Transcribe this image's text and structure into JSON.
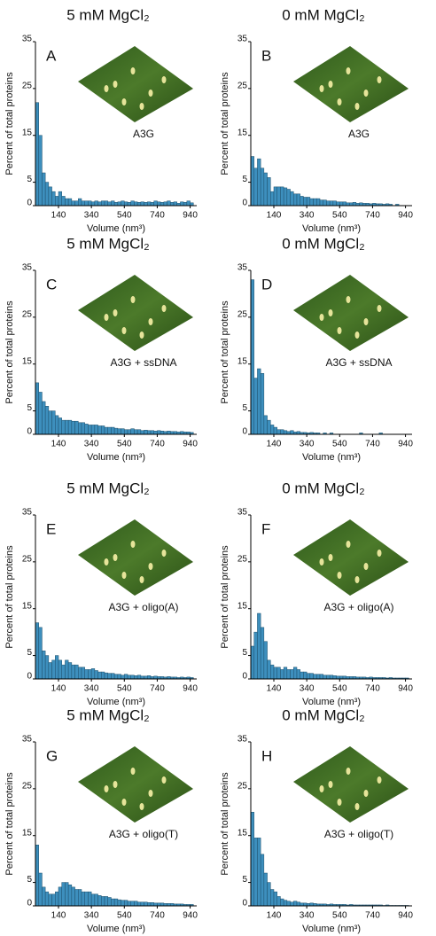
{
  "chart_data": [
    {
      "type": "histogram",
      "title": "5 mM MgCl₂",
      "panel_label": "A",
      "image_label": "A3G",
      "xlabel": "Volume (nm³)",
      "ylabel": "Percent of total proteins",
      "color": "#3d8fbd",
      "bins": [
        0,
        20,
        40,
        60,
        80,
        100,
        120,
        140,
        160,
        180,
        200,
        220,
        240,
        260,
        280,
        300,
        320,
        340,
        360,
        380,
        400,
        420,
        440,
        460,
        480,
        500,
        520,
        540,
        560,
        580,
        600,
        620,
        640,
        660,
        680,
        700,
        720,
        740,
        760,
        780,
        800,
        820,
        840,
        860,
        880,
        900,
        920,
        940,
        960
      ],
      "counts": [
        22,
        15,
        7,
        5,
        4,
        3,
        2,
        3,
        2,
        1.5,
        1.5,
        1,
        1,
        1.5,
        1,
        1,
        1,
        0.8,
        1,
        0.8,
        1,
        1,
        0.8,
        1,
        0.7,
        0.8,
        1,
        0.8,
        0.7,
        1,
        0.8,
        0.7,
        0.8,
        0.7,
        0.8,
        0.7,
        1,
        0.8,
        0.7,
        0.8,
        1,
        0.7,
        0.8,
        0.5,
        0.8,
        0.7,
        1,
        0.6
      ],
      "xlim": [
        0,
        980
      ],
      "ylim": [
        0,
        35
      ],
      "xticks": [
        140,
        340,
        540,
        740,
        940
      ],
      "yticks": [
        0,
        5,
        15,
        25,
        35
      ]
    },
    {
      "type": "histogram",
      "title": "0 mM MgCl₂",
      "panel_label": "B",
      "image_label": "A3G",
      "xlabel": "Volume (nm³)",
      "ylabel": "Percent of total proteins",
      "color": "#3d8fbd",
      "bins": [
        0,
        20,
        40,
        60,
        80,
        100,
        120,
        140,
        160,
        180,
        200,
        220,
        240,
        260,
        280,
        300,
        320,
        340,
        360,
        380,
        400,
        420,
        440,
        460,
        480,
        500,
        520,
        540,
        560,
        580,
        600,
        620,
        640,
        660,
        680,
        700,
        720,
        740,
        760,
        780,
        800,
        820,
        840,
        860,
        880,
        900,
        920,
        940,
        960
      ],
      "counts": [
        10.5,
        8,
        10,
        8,
        7,
        6,
        3,
        4,
        4,
        4,
        3.8,
        3.5,
        3,
        2.5,
        2.5,
        2,
        1.8,
        1.8,
        1.5,
        1.5,
        1.5,
        1.2,
        1.2,
        1,
        1,
        1,
        0.8,
        0.8,
        0.8,
        0.6,
        0.6,
        0.7,
        0.5,
        0.6,
        0.5,
        0.5,
        0.4,
        0.5,
        0.4,
        0.4,
        0.3,
        0.4,
        0.3,
        0,
        0.3,
        0,
        0,
        0
      ],
      "xlim": [
        0,
        980
      ],
      "ylim": [
        0,
        35
      ],
      "xticks": [
        140,
        340,
        540,
        740,
        940
      ],
      "yticks": [
        0,
        5,
        15,
        25,
        35
      ]
    },
    {
      "type": "histogram",
      "title": "5 mM MgCl₂",
      "panel_label": "C",
      "image_label": "A3G + ssDNA",
      "xlabel": "Volume (nm³)",
      "ylabel": "Percent of total proteins",
      "color": "#3d8fbd",
      "bins": [
        0,
        20,
        40,
        60,
        80,
        100,
        120,
        140,
        160,
        180,
        200,
        220,
        240,
        260,
        280,
        300,
        320,
        340,
        360,
        380,
        400,
        420,
        440,
        460,
        480,
        500,
        520,
        540,
        560,
        580,
        600,
        620,
        640,
        660,
        680,
        700,
        720,
        740,
        760,
        780,
        800,
        820,
        840,
        860,
        880,
        900,
        920,
        940,
        960
      ],
      "counts": [
        11,
        9,
        7,
        6,
        5,
        5,
        4,
        3.5,
        3,
        3,
        3,
        2.8,
        2.8,
        2.5,
        2.5,
        2.2,
        2,
        2,
        2,
        1.8,
        1.8,
        1.5,
        1.5,
        1.5,
        1.3,
        1.2,
        1.2,
        1,
        1,
        1.2,
        1,
        1,
        0.8,
        0.9,
        0.8,
        0.8,
        0.7,
        0.8,
        0.7,
        0.6,
        0.7,
        0.6,
        0.6,
        0.5,
        0.6,
        0.5,
        0.5,
        0.4
      ],
      "xlim": [
        0,
        980
      ],
      "ylim": [
        0,
        35
      ],
      "xticks": [
        140,
        340,
        540,
        740,
        940
      ],
      "yticks": [
        0,
        5,
        15,
        25,
        35
      ]
    },
    {
      "type": "histogram",
      "title": "0 mM MgCl₂",
      "panel_label": "D",
      "image_label": "A3G + ssDNA",
      "xlabel": "Volume (nm³)",
      "ylabel": "Percent of total proteins",
      "color": "#3d8fbd",
      "bins": [
        0,
        20,
        40,
        60,
        80,
        100,
        120,
        140,
        160,
        180,
        200,
        220,
        240,
        260,
        280,
        300,
        320,
        340,
        360,
        380,
        400,
        420,
        440,
        460,
        480,
        500,
        520,
        540,
        560,
        580,
        600,
        620,
        640,
        660,
        680,
        700,
        720,
        740,
        760,
        780,
        800,
        820,
        840,
        860,
        880,
        900,
        920,
        940,
        960
      ],
      "counts": [
        33,
        12,
        14,
        13,
        4,
        3,
        2,
        1.5,
        1,
        1,
        0.8,
        0.6,
        0.8,
        0.5,
        0.6,
        0.4,
        0.4,
        0.3,
        0.4,
        0.3,
        0.3,
        0,
        0.3,
        0,
        0.3,
        0,
        0,
        0,
        0,
        0,
        0,
        0,
        0,
        0.3,
        0,
        0,
        0,
        0,
        0,
        0.3,
        0,
        0,
        0,
        0,
        0,
        0,
        0,
        0
      ],
      "xlim": [
        0,
        980
      ],
      "ylim": [
        0,
        35
      ],
      "xticks": [
        140,
        340,
        540,
        740,
        940
      ],
      "yticks": [
        0,
        5,
        15,
        25,
        35
      ]
    },
    {
      "type": "histogram",
      "title": "5 mM MgCl₂",
      "panel_label": "E",
      "image_label": "A3G + oligo(A)",
      "xlabel": "Volume (nm³)",
      "ylabel": "Percent of total proteins",
      "color": "#3d8fbd",
      "bins": [
        0,
        20,
        40,
        60,
        80,
        100,
        120,
        140,
        160,
        180,
        200,
        220,
        240,
        260,
        280,
        300,
        320,
        340,
        360,
        380,
        400,
        420,
        440,
        460,
        480,
        500,
        520,
        540,
        560,
        580,
        600,
        620,
        640,
        660,
        680,
        700,
        720,
        740,
        760,
        780,
        800,
        820,
        840,
        860,
        880,
        900,
        920,
        940,
        960
      ],
      "counts": [
        12,
        11,
        6,
        5,
        3.5,
        4,
        5,
        4,
        3,
        4,
        3.5,
        3,
        3,
        2.5,
        2.5,
        2,
        2,
        2.2,
        1.8,
        1.5,
        1.5,
        1.3,
        1.2,
        1.2,
        1,
        1,
        0.8,
        1,
        0.8,
        0.8,
        0.7,
        0.8,
        0.6,
        0.6,
        0.7,
        0.5,
        0.6,
        0.5,
        0.5,
        0.4,
        0.5,
        0.4,
        0.4,
        0.3,
        0.4,
        0.3,
        0.4,
        0.3
      ],
      "xlim": [
        0,
        980
      ],
      "ylim": [
        0,
        35
      ],
      "xticks": [
        140,
        340,
        540,
        740,
        940
      ],
      "yticks": [
        0,
        5,
        15,
        25,
        35
      ]
    },
    {
      "type": "histogram",
      "title": "0 mM MgCl₂",
      "panel_label": "F",
      "image_label": "A3G + oligo(A)",
      "xlabel": "Volume (nm³)",
      "ylabel": "Percent of total proteins",
      "color": "#3d8fbd",
      "bins": [
        0,
        20,
        40,
        60,
        80,
        100,
        120,
        140,
        160,
        180,
        200,
        220,
        240,
        260,
        280,
        300,
        320,
        340,
        360,
        380,
        400,
        420,
        440,
        460,
        480,
        500,
        520,
        540,
        560,
        580,
        600,
        620,
        640,
        660,
        680,
        700,
        720,
        740,
        760,
        780,
        800,
        820,
        840,
        860,
        880,
        900,
        920,
        940,
        960
      ],
      "counts": [
        7,
        10,
        14,
        11,
        8,
        4,
        3,
        2.5,
        2.5,
        2,
        2.5,
        2,
        2,
        2.5,
        2,
        1.5,
        1.5,
        1.2,
        1.2,
        1,
        1,
        1,
        0.8,
        0.8,
        0.8,
        0.7,
        0.6,
        0.6,
        0.6,
        0.5,
        0.5,
        0.5,
        0.4,
        0.4,
        0.4,
        0.3,
        0.4,
        0.3,
        0.3,
        0.3,
        0.3,
        0.2,
        0.3,
        0.2,
        0.2,
        0.2,
        0.2,
        0.2
      ],
      "xlim": [
        0,
        980
      ],
      "ylim": [
        0,
        35
      ],
      "xticks": [
        140,
        340,
        540,
        740,
        940
      ],
      "yticks": [
        0,
        5,
        15,
        25,
        35
      ]
    },
    {
      "type": "histogram",
      "title": "5 mM MgCl₂",
      "panel_label": "G",
      "image_label": "A3G + oligo(T)",
      "xlabel": "Volume (nm³)",
      "ylabel": "Percent of total proteins",
      "color": "#3d8fbd",
      "bins": [
        0,
        20,
        40,
        60,
        80,
        100,
        120,
        140,
        160,
        180,
        200,
        220,
        240,
        260,
        280,
        300,
        320,
        340,
        360,
        380,
        400,
        420,
        440,
        460,
        480,
        500,
        520,
        540,
        560,
        580,
        600,
        620,
        640,
        660,
        680,
        700,
        720,
        740,
        760,
        780,
        800,
        820,
        840,
        860,
        880,
        900,
        920,
        940,
        960
      ],
      "counts": [
        13,
        7,
        4,
        3,
        2.5,
        2.5,
        3,
        4,
        5,
        5,
        4.5,
        4,
        3.5,
        3.5,
        3,
        3,
        3,
        2.5,
        2.5,
        2.2,
        2,
        2,
        1.8,
        1.5,
        1.5,
        1.3,
        1.2,
        1.2,
        1,
        1,
        1,
        0.8,
        0.8,
        0.8,
        0.7,
        0.7,
        0.6,
        0.6,
        0.6,
        0.5,
        0.5,
        0.5,
        0.4,
        0.4,
        0.4,
        0.3,
        0.3,
        0.3
      ],
      "xlim": [
        0,
        980
      ],
      "ylim": [
        0,
        35
      ],
      "xticks": [
        140,
        340,
        540,
        740,
        940
      ],
      "yticks": [
        0,
        5,
        15,
        25,
        35
      ]
    },
    {
      "type": "histogram",
      "title": "0 mM MgCl₂",
      "panel_label": "H",
      "image_label": "A3G + oligo(T)",
      "xlabel": "Volume (nm³)",
      "ylabel": "Percent of total proteins",
      "color": "#3d8fbd",
      "bins": [
        0,
        20,
        40,
        60,
        80,
        100,
        120,
        140,
        160,
        180,
        200,
        220,
        240,
        260,
        280,
        300,
        320,
        340,
        360,
        380,
        400,
        420,
        440,
        460,
        480,
        500,
        520,
        540,
        560,
        580,
        600,
        620,
        640,
        660,
        680,
        700,
        720,
        740,
        760,
        780,
        800,
        820,
        840,
        860,
        880,
        900,
        920,
        940,
        960
      ],
      "counts": [
        20,
        14.5,
        14.5,
        11,
        7,
        5,
        3.5,
        3,
        2,
        1.5,
        1.2,
        1,
        0.8,
        1,
        0.8,
        0.6,
        0.6,
        0.5,
        0.6,
        0.5,
        0.4,
        0.4,
        0.4,
        0.3,
        0.4,
        0.3,
        0.3,
        0.3,
        0.3,
        0.2,
        0.3,
        0.2,
        0.2,
        0.2,
        0.2,
        0.2,
        0.2,
        0.2,
        0.2,
        0.2,
        0.1,
        0.2,
        0.1,
        0.1,
        0.1,
        0.1,
        0.1,
        0.1
      ],
      "xlim": [
        0,
        980
      ],
      "ylim": [
        0,
        35
      ],
      "xticks": [
        140,
        340,
        540,
        740,
        940
      ],
      "yticks": [
        0,
        5,
        15,
        25,
        35
      ]
    }
  ]
}
